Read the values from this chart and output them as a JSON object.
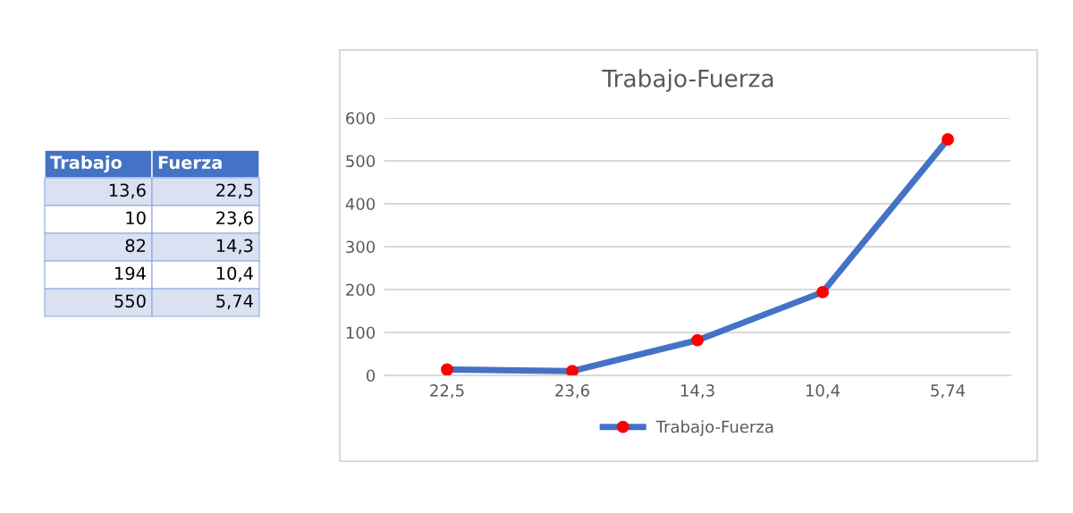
{
  "chart_data": {
    "type": "line",
    "title": "Trabajo-Fuerza",
    "categories": [
      "22,5",
      "23,6",
      "14,3",
      "10,4",
      "5,74"
    ],
    "series": [
      {
        "name": "Trabajo-Fuerza",
        "color": "#4472c4",
        "colors": [
          "#ff0000",
          "#ff0000",
          "#ff0000",
          "#ff0000",
          "#ff0000"
        ],
        "values": [
          13.6,
          10,
          82,
          194,
          550
        ]
      }
    ],
    "value_labels": [
      "13,6",
      "10",
      "82",
      "194",
      "550"
    ],
    "annotations": [
      "Trabajo",
      "Fuerza"
    ],
    "ylim": [
      0,
      600
    ],
    "yticks": [
      0,
      100,
      200,
      300,
      400,
      500,
      600
    ],
    "grid": "y",
    "legend": "bottom",
    "marker": "circle",
    "line_style": "solid"
  }
}
